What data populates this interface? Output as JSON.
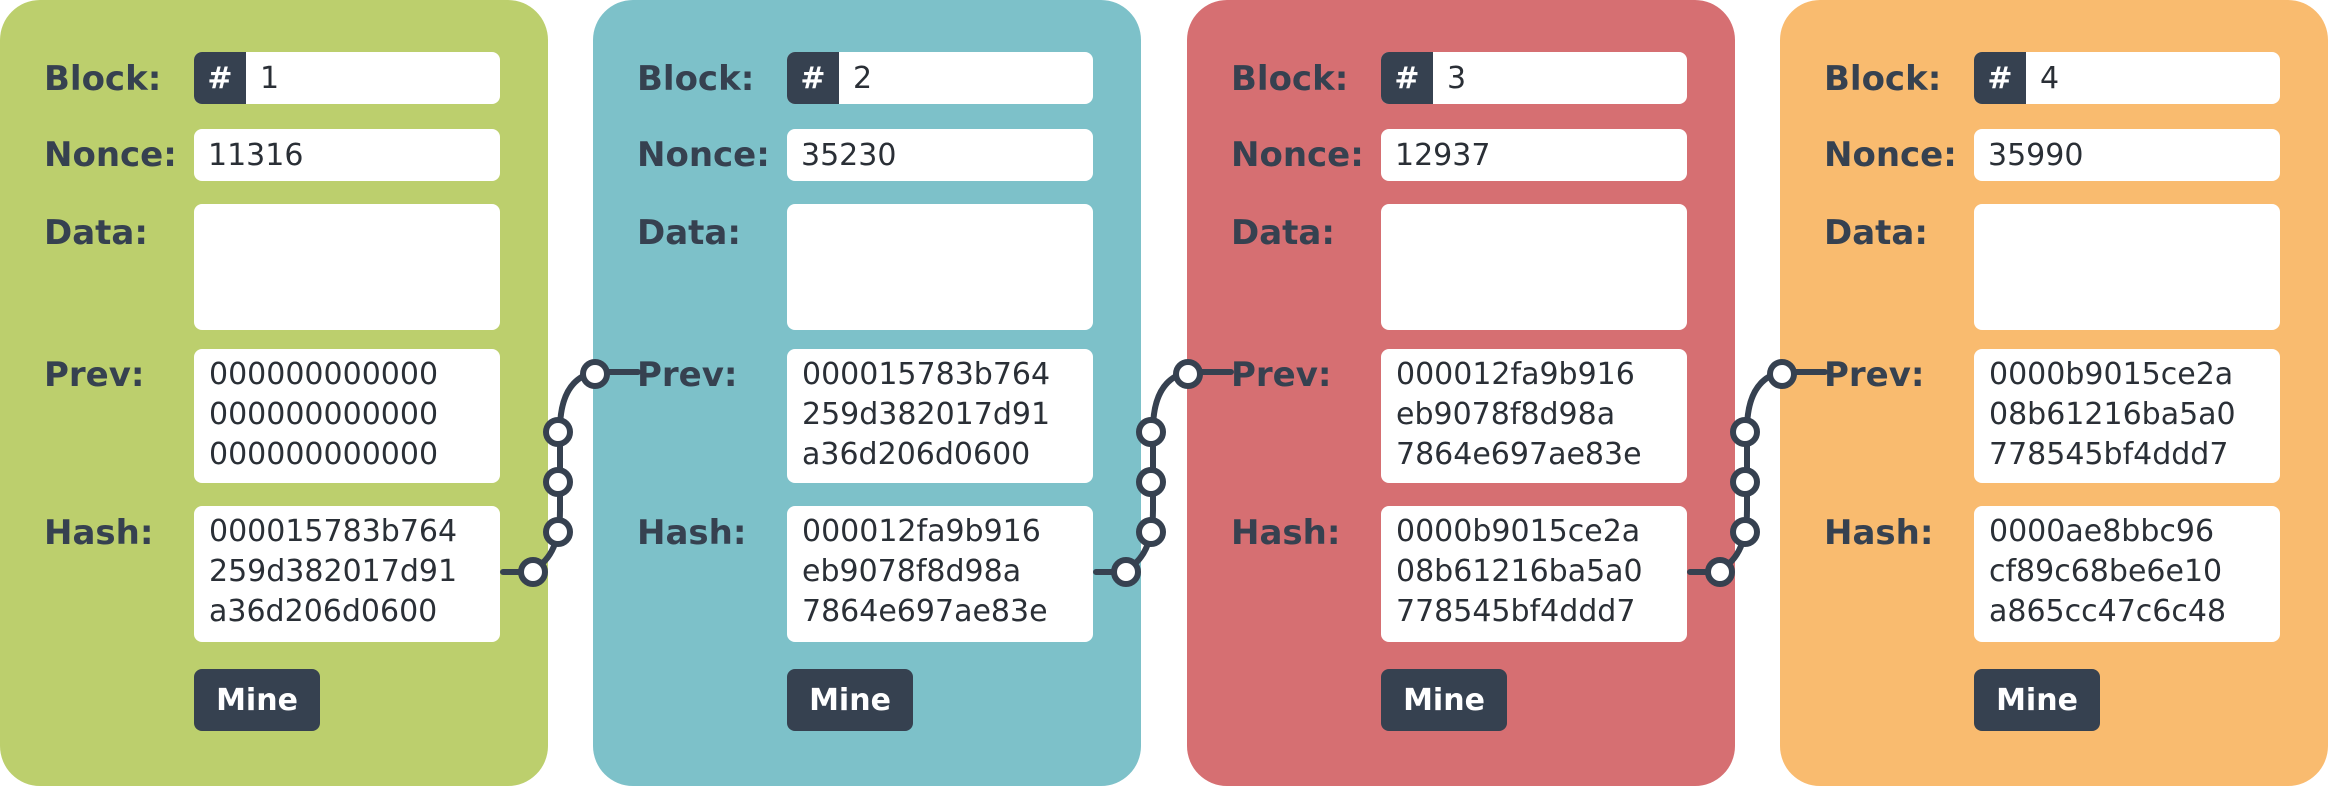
{
  "labels": {
    "block": "Block:",
    "nonce": "Nonce:",
    "data": "Data:",
    "prev": "Prev:",
    "hash": "Hash:",
    "hash_symbol": "#",
    "mine": "Mine"
  },
  "colors": {
    "block_1": "#bccf6d",
    "block_2": "#7dc1c9",
    "block_3": "#d66f72",
    "block_4": "#f9bb6f",
    "dark": "#364150"
  },
  "blocks": [
    {
      "number": "1",
      "nonce": "11316",
      "data": "",
      "prev": [
        "000000000000",
        "000000000000",
        "000000000000"
      ],
      "hash": [
        "000015783b764",
        "259d382017d91",
        "a36d206d0600"
      ]
    },
    {
      "number": "2",
      "nonce": "35230",
      "data": "",
      "prev": [
        "000015783b764",
        "259d382017d91",
        "a36d206d0600"
      ],
      "hash": [
        "000012fa9b916",
        "eb9078f8d98a",
        "7864e697ae83e"
      ]
    },
    {
      "number": "3",
      "nonce": "12937",
      "data": "",
      "prev": [
        "000012fa9b916",
        "eb9078f8d98a",
        "7864e697ae83e"
      ],
      "hash": [
        "0000b9015ce2a",
        "08b61216ba5a0",
        "778545bf4ddd7"
      ]
    },
    {
      "number": "4",
      "nonce": "35990",
      "data": "",
      "prev": [
        "0000b9015ce2a",
        "08b61216ba5a0",
        "778545bf4ddd7"
      ],
      "hash": [
        "0000ae8bbc96",
        "cf89c68be6e10",
        "a865cc47c6c48"
      ]
    }
  ]
}
